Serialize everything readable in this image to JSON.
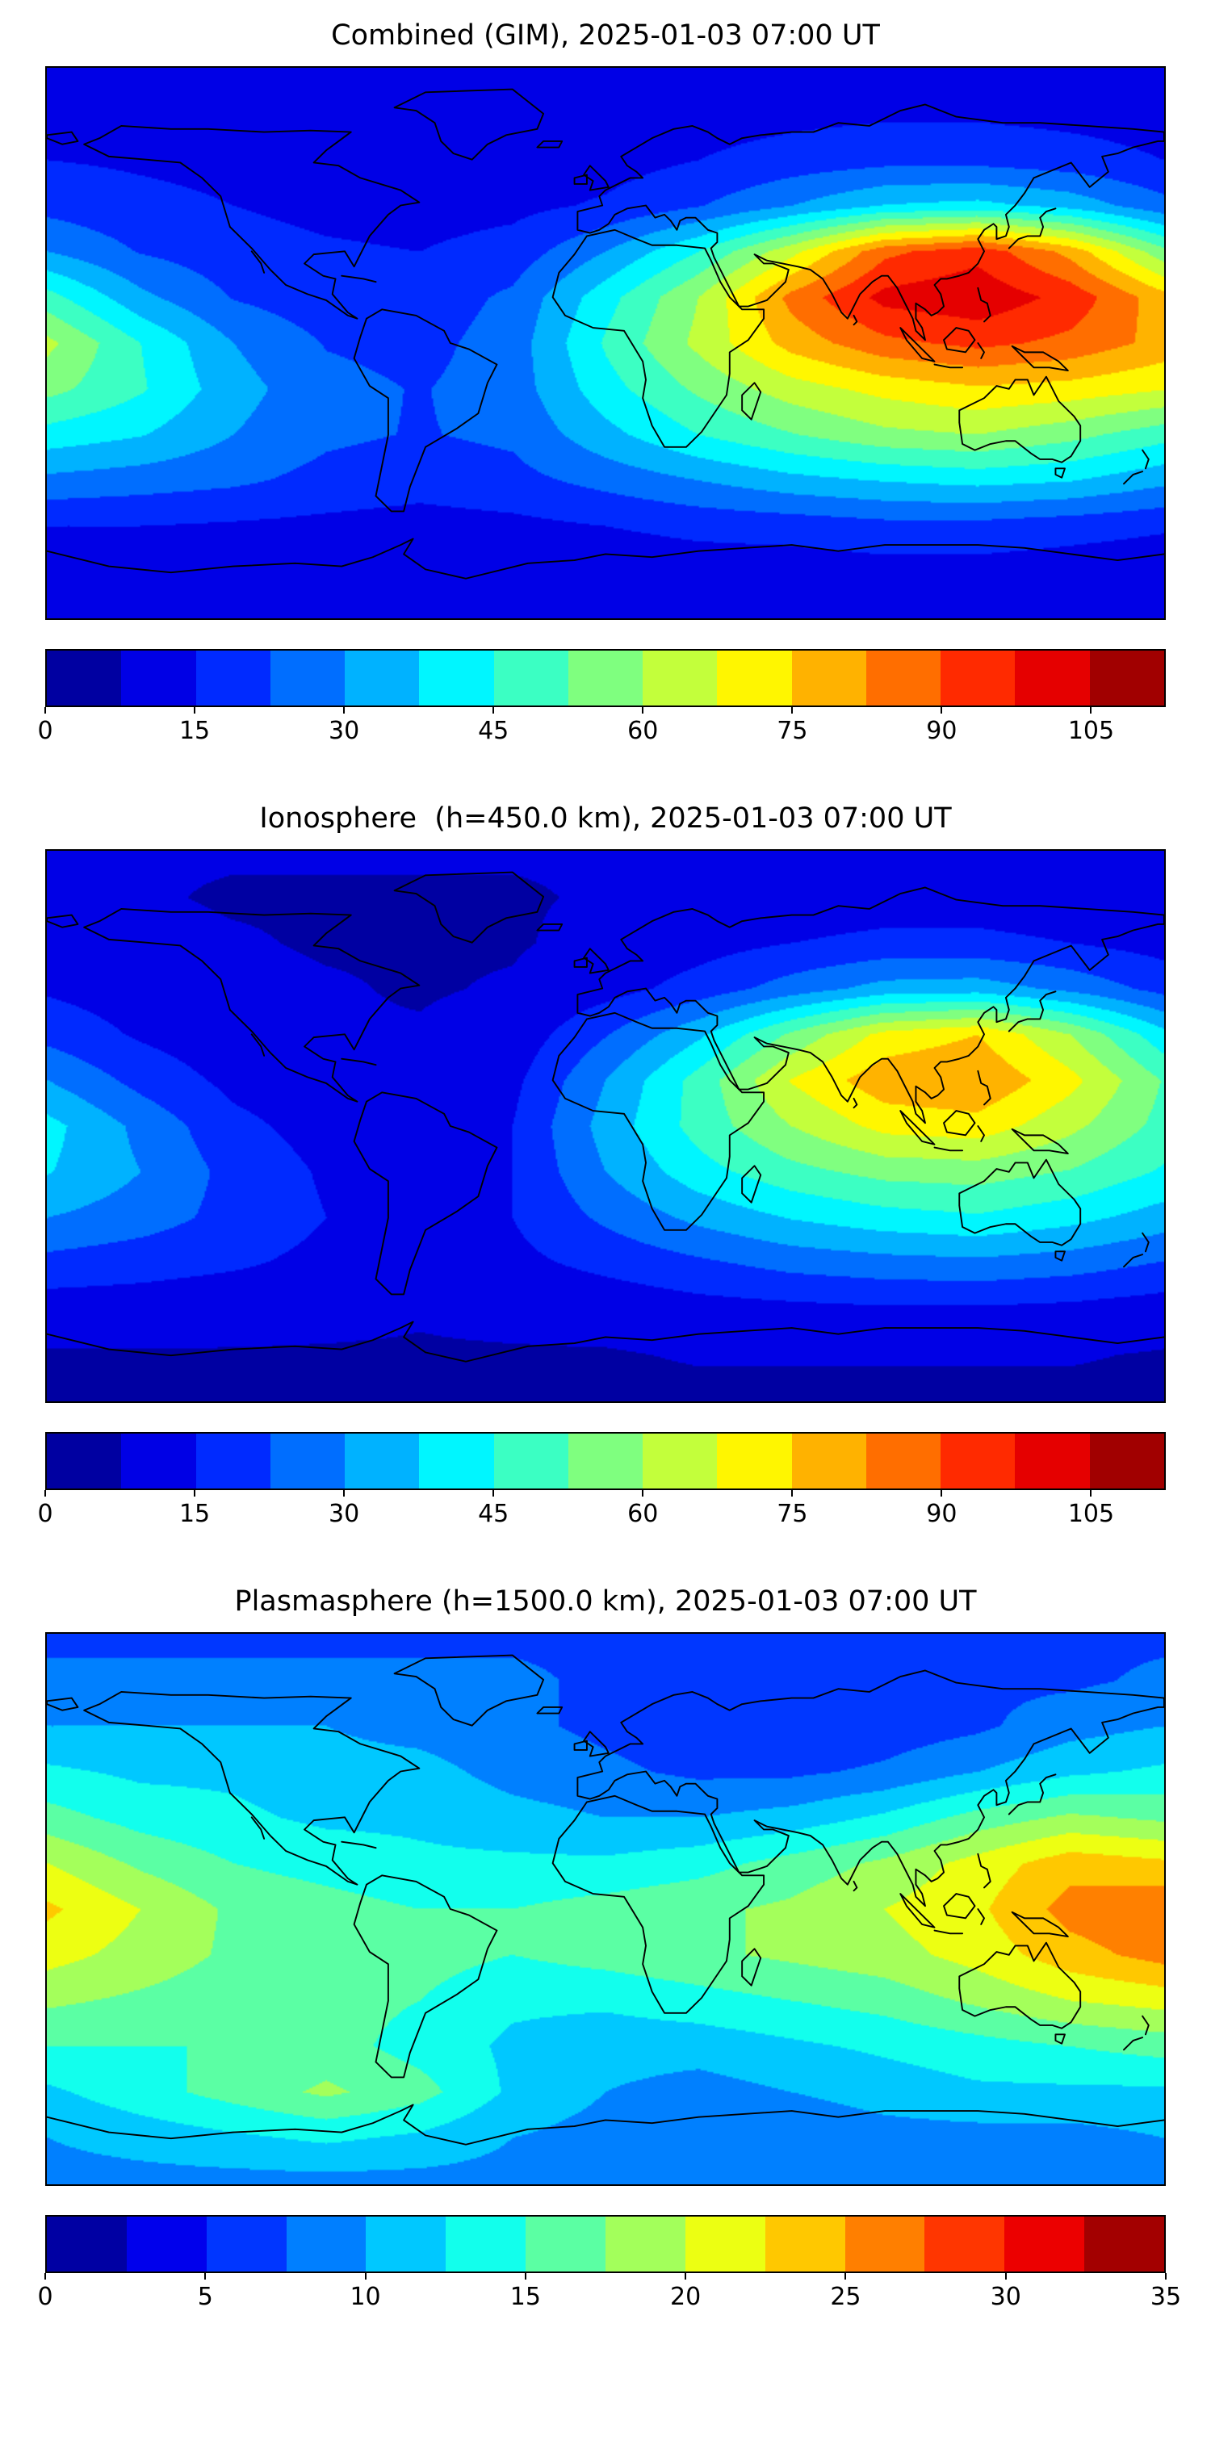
{
  "figure": {
    "background": "#ffffff",
    "colormap": "jet",
    "panel_count": 3
  },
  "chart_data": [
    {
      "type": "heatmap",
      "title": "Combined (GIM), 2025-01-03 07:00 UT",
      "colormap": "jet",
      "projection": "equirectangular",
      "lon_range": [
        -180,
        180
      ],
      "lat_range": [
        -90,
        90
      ],
      "levels": {
        "min": 0,
        "max": 112.5,
        "step": 7.5
      },
      "colorbar_ticks": [
        0,
        15,
        30,
        45,
        60,
        75,
        90,
        105
      ],
      "lons": [
        -180,
        -150,
        -120,
        -90,
        -60,
        -30,
        0,
        30,
        60,
        90,
        120,
        150,
        180
      ],
      "lats": [
        90,
        75,
        60,
        45,
        30,
        15,
        0,
        -15,
        -30,
        -45,
        -60,
        -75,
        -90
      ],
      "values": [
        [
          10,
          10,
          10,
          10,
          10,
          10,
          10,
          10,
          10,
          10,
          10,
          10,
          10
        ],
        [
          12,
          12,
          11,
          10,
          10,
          10,
          11,
          12,
          13,
          14,
          14,
          13,
          12
        ],
        [
          15,
          14,
          13,
          12,
          11,
          11,
          12,
          15,
          18,
          20,
          20,
          18,
          15
        ],
        [
          20,
          17,
          15,
          13,
          12,
          13,
          16,
          22,
          30,
          38,
          40,
          35,
          25
        ],
        [
          30,
          22,
          18,
          16,
          15,
          18,
          30,
          45,
          65,
          88,
          95,
          80,
          55
        ],
        [
          48,
          32,
          22,
          18,
          18,
          24,
          42,
          60,
          85,
          100,
          103,
          95,
          78
        ],
        [
          62,
          45,
          30,
          22,
          20,
          26,
          46,
          62,
          78,
          88,
          92,
          88,
          80
        ],
        [
          55,
          46,
          33,
          25,
          22,
          26,
          42,
          54,
          64,
          70,
          74,
          72,
          68
        ],
        [
          42,
          38,
          30,
          24,
          22,
          24,
          35,
          45,
          52,
          58,
          60,
          55,
          48
        ],
        [
          28,
          26,
          24,
          20,
          18,
          20,
          25,
          30,
          35,
          38,
          40,
          38,
          32
        ],
        [
          15,
          15,
          14,
          13,
          12,
          13,
          15,
          17,
          18,
          20,
          20,
          18,
          16
        ],
        [
          10,
          10,
          10,
          10,
          10,
          10,
          10,
          11,
          11,
          12,
          12,
          11,
          10
        ],
        [
          8,
          8,
          8,
          8,
          8,
          8,
          8,
          8,
          8,
          8,
          8,
          8,
          8
        ]
      ]
    },
    {
      "type": "heatmap",
      "title": "Ionosphere  (h=450.0 km), 2025-01-03 07:00 UT",
      "colormap": "jet",
      "projection": "equirectangular",
      "lon_range": [
        -180,
        180
      ],
      "lat_range": [
        -90,
        90
      ],
      "levels": {
        "min": 0,
        "max": 112.5,
        "step": 7.5
      },
      "colorbar_ticks": [
        0,
        15,
        30,
        45,
        60,
        75,
        90,
        105
      ],
      "lons": [
        -180,
        -150,
        -120,
        -90,
        -60,
        -30,
        0,
        30,
        60,
        90,
        120,
        150,
        180
      ],
      "lats": [
        90,
        75,
        60,
        45,
        30,
        15,
        0,
        -15,
        -30,
        -45,
        -60,
        -75,
        -90
      ],
      "values": [
        [
          8,
          8,
          8,
          8,
          8,
          8,
          8,
          8,
          8,
          8,
          8,
          8,
          8
        ],
        [
          8,
          8,
          7,
          7,
          7,
          7,
          8,
          9,
          10,
          11,
          11,
          10,
          9
        ],
        [
          10,
          9,
          8,
          7,
          7,
          7,
          9,
          12,
          15,
          17,
          17,
          15,
          12
        ],
        [
          14,
          11,
          9,
          8,
          7,
          8,
          12,
          18,
          26,
          33,
          34,
          28,
          20
        ],
        [
          20,
          14,
          10,
          8,
          8,
          10,
          22,
          36,
          54,
          70,
          75,
          60,
          40
        ],
        [
          30,
          20,
          13,
          10,
          9,
          13,
          30,
          48,
          68,
          80,
          82,
          70,
          52
        ],
        [
          40,
          28,
          17,
          12,
          11,
          15,
          33,
          48,
          60,
          70,
          72,
          62,
          50
        ],
        [
          38,
          30,
          20,
          14,
          12,
          15,
          30,
          42,
          50,
          55,
          56,
          52,
          44
        ],
        [
          30,
          26,
          20,
          15,
          13,
          15,
          24,
          32,
          38,
          42,
          44,
          40,
          34
        ],
        [
          20,
          18,
          16,
          13,
          11,
          13,
          17,
          21,
          25,
          27,
          28,
          26,
          22
        ],
        [
          11,
          11,
          10,
          9,
          8,
          9,
          10,
          12,
          13,
          14,
          14,
          13,
          11
        ],
        [
          7,
          7,
          7,
          7,
          7,
          7,
          7,
          8,
          8,
          8,
          8,
          8,
          7
        ],
        [
          6,
          6,
          6,
          6,
          6,
          6,
          6,
          6,
          6,
          6,
          6,
          6,
          6
        ]
      ]
    },
    {
      "type": "heatmap",
      "title": "Plasmasphere (h=1500.0 km), 2025-01-03 07:00 UT",
      "colormap": "jet",
      "projection": "equirectangular",
      "lon_range": [
        -180,
        180
      ],
      "lat_range": [
        -90,
        90
      ],
      "levels": {
        "min": 0,
        "max": 35,
        "step": 2.5
      },
      "colorbar_ticks": [
        0,
        5,
        10,
        15,
        20,
        25,
        30,
        35
      ],
      "lons": [
        -180,
        -150,
        -120,
        -90,
        -60,
        -30,
        0,
        30,
        60,
        90,
        120,
        150,
        180
      ],
      "lats": [
        90,
        75,
        60,
        45,
        30,
        15,
        0,
        -15,
        -30,
        -45,
        -60,
        -75,
        -90
      ],
      "values": [
        [
          7,
          7,
          7,
          7,
          7,
          7,
          7,
          7,
          7,
          7,
          7,
          7,
          7
        ],
        [
          8,
          8,
          8,
          8,
          8,
          8,
          7,
          6,
          6,
          6,
          7,
          7,
          8
        ],
        [
          10,
          10,
          10,
          10,
          9,
          8,
          7,
          6,
          5,
          6,
          7,
          9,
          10
        ],
        [
          13,
          12,
          12,
          11,
          11,
          9,
          8,
          7,
          7,
          8,
          10,
          12,
          13
        ],
        [
          16,
          14,
          13,
          12,
          12,
          11,
          10,
          10,
          11,
          13,
          16,
          18,
          17
        ],
        [
          20,
          17,
          15,
          14,
          13,
          13,
          13,
          14,
          16,
          18,
          21,
          24,
          23
        ],
        [
          23,
          20,
          17,
          16,
          15,
          15,
          16,
          17,
          18,
          20,
          22,
          26,
          27
        ],
        [
          21,
          19,
          17,
          17,
          16,
          15,
          16,
          17,
          18,
          19,
          21,
          24,
          26
        ],
        [
          18,
          17,
          16,
          16,
          15,
          13,
          13,
          14,
          15,
          16,
          18,
          20,
          21
        ],
        [
          15,
          15,
          15,
          16,
          14,
          12,
          11,
          11,
          12,
          13,
          14,
          15,
          16
        ],
        [
          12,
          14,
          16,
          18,
          16,
          12,
          10,
          9,
          10,
          11,
          12,
          12,
          12
        ],
        [
          10,
          11,
          12,
          13,
          12,
          10,
          9,
          8,
          8,
          9,
          9,
          9,
          10
        ],
        [
          9,
          9,
          9,
          9,
          9,
          9,
          9,
          9,
          9,
          9,
          9,
          9,
          9
        ]
      ]
    }
  ]
}
